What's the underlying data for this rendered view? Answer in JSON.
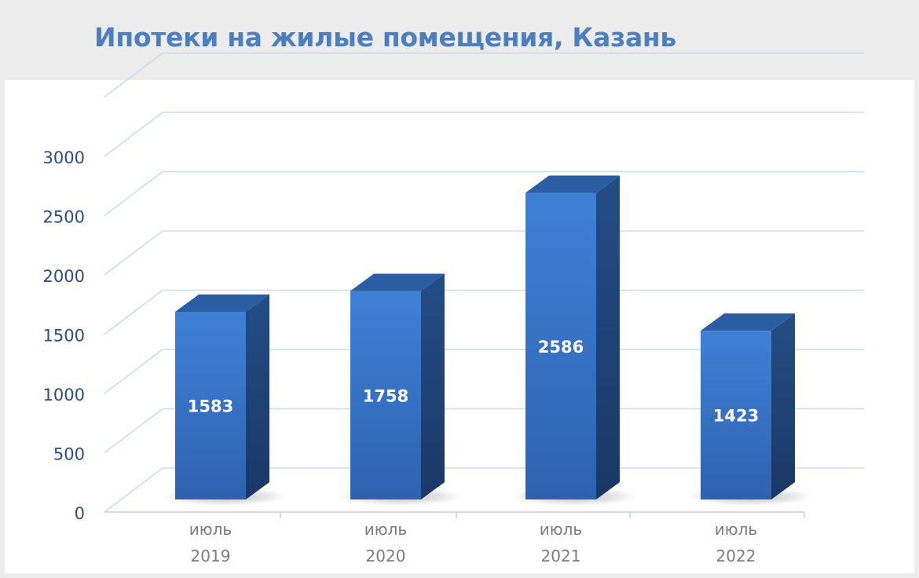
{
  "header": {
    "title": "Ипотеки на жилые помещения, Казань"
  },
  "chart_data": {
    "type": "bar",
    "title": "Ипотеки на жилые помещения, Казань",
    "categories": [
      {
        "line1": "июль",
        "line2": "2019"
      },
      {
        "line1": "июль",
        "line2": "2020"
      },
      {
        "line1": "июль",
        "line2": "2021"
      },
      {
        "line1": "июль",
        "line2": "2022"
      }
    ],
    "values": [
      1583,
      1758,
      2586,
      1423
    ],
    "data_labels": [
      "1583",
      "1758",
      "2586",
      "1423"
    ],
    "y_ticks": [
      "0",
      "500",
      "1000",
      "1500",
      "2000",
      "2500",
      "3000"
    ],
    "ylim": [
      0,
      3000
    ],
    "grid": true,
    "style": "3d-column",
    "colors": {
      "bar_front": "#3c7ad0",
      "bar_side": "#1f4478",
      "bar_top": "#2b5da3",
      "grid": "#c9dcf0",
      "tick_text": "#2a4d85",
      "category_text": "#7c7c7c",
      "data_label": "#ffffff"
    }
  }
}
